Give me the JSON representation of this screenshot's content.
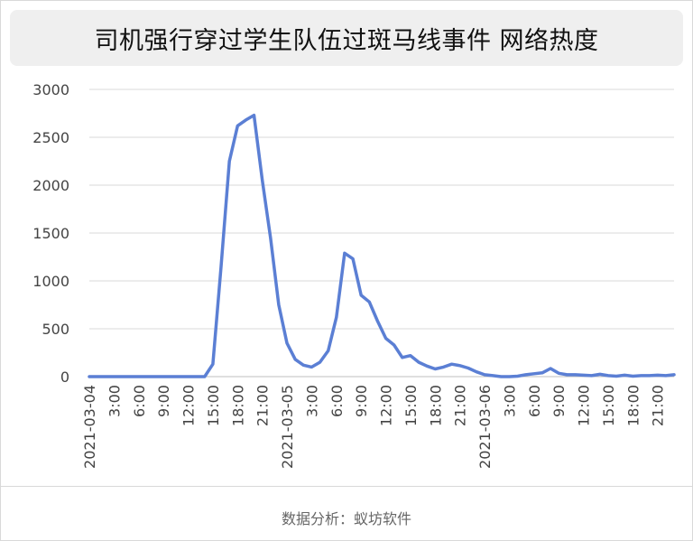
{
  "title": "司机强行穿过学生队伍过斑马线事件 网络热度",
  "source": "数据分析：蚁坊软件",
  "chart_data": {
    "type": "line",
    "title": "司机强行穿过学生队伍过斑马线事件 网络热度",
    "xlabel": "",
    "ylabel": "",
    "ylim": [
      0,
      3000
    ],
    "yticks": [
      0,
      500,
      1000,
      1500,
      2000,
      2500,
      3000
    ],
    "xlim": [
      0,
      71
    ],
    "xticks": [
      {
        "x": 0,
        "label": "2021-03-04"
      },
      {
        "x": 3,
        "label": "3:00"
      },
      {
        "x": 6,
        "label": "6:00"
      },
      {
        "x": 9,
        "label": "9:00"
      },
      {
        "x": 12,
        "label": "12:00"
      },
      {
        "x": 15,
        "label": "15:00"
      },
      {
        "x": 18,
        "label": "18:00"
      },
      {
        "x": 21,
        "label": "21:00"
      },
      {
        "x": 24,
        "label": "2021-03-05"
      },
      {
        "x": 27,
        "label": "3:00"
      },
      {
        "x": 30,
        "label": "6:00"
      },
      {
        "x": 33,
        "label": "9:00"
      },
      {
        "x": 36,
        "label": "12:00"
      },
      {
        "x": 39,
        "label": "15:00"
      },
      {
        "x": 42,
        "label": "18:00"
      },
      {
        "x": 45,
        "label": "21:00"
      },
      {
        "x": 48,
        "label": "2021-03-06"
      },
      {
        "x": 51,
        "label": "3:00"
      },
      {
        "x": 54,
        "label": "6:00"
      },
      {
        "x": 57,
        "label": "9:00"
      },
      {
        "x": 60,
        "label": "12:00"
      },
      {
        "x": 63,
        "label": "15:00"
      },
      {
        "x": 66,
        "label": "18:00"
      },
      {
        "x": 69,
        "label": "21:00"
      }
    ],
    "grid": true,
    "line_color": "#5b7fd4",
    "series": [
      {
        "values": [
          0,
          0,
          0,
          0,
          0,
          0,
          0,
          0,
          0,
          0,
          0,
          0,
          0,
          0,
          0,
          130,
          1150,
          2250,
          2620,
          2680,
          2730,
          2050,
          1450,
          750,
          350,
          180,
          120,
          100,
          150,
          270,
          620,
          1290,
          1230,
          850,
          780,
          580,
          400,
          330,
          200,
          220,
          150,
          110,
          80,
          100,
          130,
          115,
          90,
          50,
          20,
          10,
          0,
          0,
          5,
          20,
          30,
          40,
          85,
          35,
          20,
          20,
          15,
          10,
          25,
          10,
          5,
          15,
          5,
          10,
          10,
          15,
          10,
          20
        ]
      }
    ]
  }
}
